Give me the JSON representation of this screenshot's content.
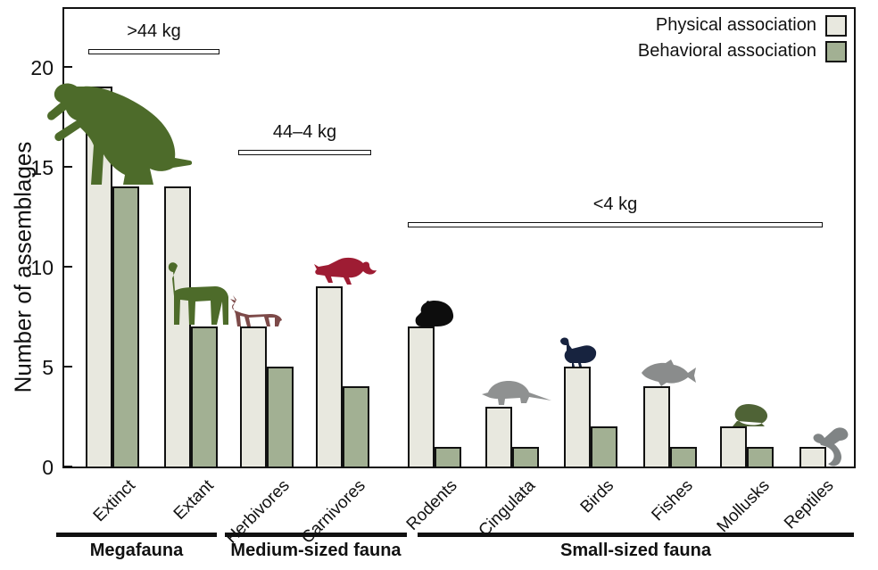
{
  "chart_data": {
    "type": "bar",
    "title": "",
    "ylabel": "Number of assemblages",
    "ylim": [
      0,
      23
    ],
    "yticks": [
      0,
      5,
      10,
      15,
      20
    ],
    "grid": false,
    "legend_position": "top-right",
    "categories": [
      "Extinct",
      "Extant",
      "Herbivores",
      "Carnivores",
      "Rodents",
      "Cingulata",
      "Birds",
      "Fishes",
      "Mollusks",
      "Reptiles"
    ],
    "series": [
      {
        "name": "Physical association",
        "color": "#e8e8df",
        "values": [
          19,
          14,
          7,
          9,
          7,
          3,
          5,
          4,
          2,
          1
        ]
      },
      {
        "name": "Behavioral association",
        "color": "#a2b093",
        "values": [
          14,
          7,
          5,
          4,
          1,
          1,
          2,
          1,
          1,
          null
        ]
      }
    ],
    "brackets": [
      {
        "label": ">44 kg",
        "span": [
          "Extinct",
          "Extant"
        ]
      },
      {
        "label": "44–4 kg",
        "span": [
          "Herbivores",
          "Carnivores"
        ]
      },
      {
        "label": "<4 kg",
        "span": [
          "Rodents",
          "Reptiles"
        ]
      }
    ],
    "groups": [
      {
        "label": "Megafauna",
        "categories": [
          "Extinct",
          "Extant"
        ]
      },
      {
        "label": "Medium-sized fauna",
        "categories": [
          "Herbivores",
          "Carnivores"
        ]
      },
      {
        "label": "Small-sized fauna",
        "categories": [
          "Rodents",
          "Cingulata",
          "Birds",
          "Fishes",
          "Mollusks",
          "Reptiles"
        ]
      }
    ]
  },
  "silhouettes": [
    {
      "icon": "ground-sloth-icon",
      "category": "Extinct",
      "color": "#4d6b2a"
    },
    {
      "icon": "llama-icon",
      "category": "Extant",
      "color": "#4d6b2a"
    },
    {
      "icon": "deer-icon",
      "category": "Herbivores",
      "color": "#7d4a49"
    },
    {
      "icon": "fox-icon",
      "category": "Carnivores",
      "color": "#9e1c33"
    },
    {
      "icon": "guinea-pig-icon",
      "category": "Rodents",
      "color": "#0d0d0d"
    },
    {
      "icon": "armadillo-icon",
      "category": "Cingulata",
      "color": "#8f9191"
    },
    {
      "icon": "duck-icon",
      "category": "Birds",
      "color": "#17233f"
    },
    {
      "icon": "fish-icon",
      "category": "Fishes",
      "color": "#8a8c8c"
    },
    {
      "icon": "mollusk-icon",
      "category": "Mollusks",
      "color": "#4f6336"
    },
    {
      "icon": "lizard-icon",
      "category": "Reptiles",
      "color": "#808485"
    }
  ],
  "colors": {
    "axis": "#111111",
    "physical_fill": "#e8e8df",
    "behavioral_fill": "#a2b093"
  }
}
